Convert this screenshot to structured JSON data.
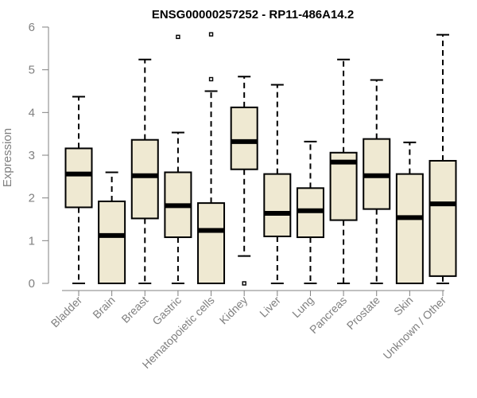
{
  "chart_data": {
    "type": "boxplot",
    "title": "ENSG00000257252 - RP11-486A14.2",
    "ylabel": "Expression",
    "xlabel": "",
    "ylim": [
      0,
      6
    ],
    "yticks": [
      0,
      1,
      2,
      3,
      4,
      5,
      6
    ],
    "box_fill": "#efe9d2",
    "box_stroke": "#000000",
    "median_stroke": "#000000",
    "grid": false,
    "boxes": [
      {
        "category": "Bladder",
        "whisker_low": 0,
        "q1": 1.78,
        "median": 2.56,
        "q3": 3.16,
        "whisker_high": 4.37,
        "outliers": []
      },
      {
        "category": "Brain",
        "whisker_low": 0,
        "q1": 0,
        "median": 1.12,
        "q3": 1.92,
        "whisker_high": 2.6,
        "outliers": []
      },
      {
        "category": "Breast",
        "whisker_low": 0,
        "q1": 1.52,
        "median": 2.52,
        "q3": 3.36,
        "whisker_high": 5.24,
        "outliers": []
      },
      {
        "category": "Gastric",
        "whisker_low": 0,
        "q1": 1.08,
        "median": 1.82,
        "q3": 2.6,
        "whisker_high": 3.53,
        "outliers": [
          5.77
        ]
      },
      {
        "category": "Hematopoietic cells",
        "whisker_low": 0,
        "q1": 0,
        "median": 1.24,
        "q3": 1.88,
        "whisker_high": 4.5,
        "outliers": [
          4.78,
          5.83
        ]
      },
      {
        "category": "Kidney",
        "whisker_low": 0.64,
        "q1": 2.67,
        "median": 3.32,
        "q3": 4.12,
        "whisker_high": 4.84,
        "outliers": [
          0
        ]
      },
      {
        "category": "Liver",
        "whisker_low": 0,
        "q1": 1.1,
        "median": 1.64,
        "q3": 2.56,
        "whisker_high": 4.65,
        "outliers": []
      },
      {
        "category": "Lung",
        "whisker_low": 0,
        "q1": 1.08,
        "median": 1.7,
        "q3": 2.23,
        "whisker_high": 3.32,
        "outliers": []
      },
      {
        "category": "Pancreas",
        "whisker_low": 0,
        "q1": 1.48,
        "median": 2.84,
        "q3": 3.06,
        "whisker_high": 5.24,
        "outliers": []
      },
      {
        "category": "Prostate",
        "whisker_low": 0,
        "q1": 1.74,
        "median": 2.52,
        "q3": 3.38,
        "whisker_high": 4.76,
        "outliers": []
      },
      {
        "category": "Skin",
        "whisker_low": 0,
        "q1": 0,
        "median": 1.54,
        "q3": 2.56,
        "whisker_high": 3.3,
        "outliers": []
      },
      {
        "category": "Unknown / Other",
        "whisker_low": 0,
        "q1": 0.17,
        "median": 1.86,
        "q3": 2.87,
        "whisker_high": 5.82,
        "outliers": []
      }
    ]
  }
}
